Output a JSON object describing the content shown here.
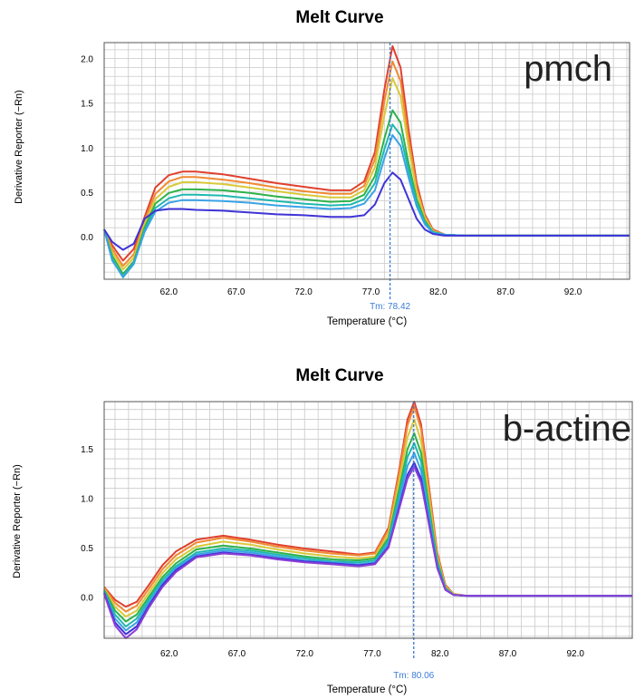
{
  "chart_data": [
    {
      "type": "line",
      "title": "Melt Curve",
      "annotation": "pmch",
      "xlabel": "Temperature (°C)",
      "ylabel": "Derivative Reporter (−Rn)",
      "xlim": [
        57.2,
        96.2
      ],
      "ylim": [
        -0.48,
        2.18
      ],
      "xticks": [
        62.0,
        67.0,
        72.0,
        77.0,
        82.0,
        87.0,
        92.0
      ],
      "yticks": [
        0.0,
        0.5,
        1.0,
        1.5,
        2.0
      ],
      "grid": true,
      "tm_label": "Tm: 78.42",
      "tm_value": 78.42,
      "x": [
        57.2,
        57.8,
        58.6,
        59.4,
        60.2,
        61.0,
        62.0,
        63.0,
        64.0,
        66.0,
        68.0,
        70.0,
        72.0,
        74.0,
        75.5,
        76.5,
        77.3,
        78.0,
        78.6,
        79.2,
        79.8,
        80.4,
        81.0,
        81.6,
        82.5,
        84.0,
        87.0,
        90.0,
        96.2
      ],
      "series": [
        {
          "color": "#e0402f",
          "values": [
            0.08,
            -0.1,
            -0.27,
            -0.14,
            0.22,
            0.55,
            0.69,
            0.73,
            0.73,
            0.7,
            0.65,
            0.6,
            0.56,
            0.52,
            0.52,
            0.62,
            0.95,
            1.65,
            2.14,
            1.9,
            1.2,
            0.6,
            0.25,
            0.08,
            0.02,
            0.01,
            0.01,
            0.01,
            0.01
          ]
        },
        {
          "color": "#f08a32",
          "values": [
            0.08,
            -0.14,
            -0.33,
            -0.2,
            0.18,
            0.48,
            0.62,
            0.67,
            0.67,
            0.64,
            0.6,
            0.55,
            0.51,
            0.48,
            0.48,
            0.57,
            0.87,
            1.52,
            1.97,
            1.75,
            1.1,
            0.55,
            0.23,
            0.07,
            0.02,
            0.01,
            0.01,
            0.01,
            0.01
          ]
        },
        {
          "color": "#d9c93a",
          "values": [
            0.08,
            -0.18,
            -0.37,
            -0.24,
            0.14,
            0.42,
            0.56,
            0.61,
            0.61,
            0.59,
            0.55,
            0.51,
            0.47,
            0.44,
            0.44,
            0.52,
            0.78,
            1.36,
            1.78,
            1.58,
            1.0,
            0.5,
            0.21,
            0.06,
            0.02,
            0.01,
            0.01,
            0.01,
            0.01
          ]
        },
        {
          "color": "#2fb24a",
          "values": [
            0.08,
            -0.22,
            -0.42,
            -0.28,
            0.1,
            0.37,
            0.49,
            0.53,
            0.53,
            0.52,
            0.49,
            0.45,
            0.42,
            0.39,
            0.4,
            0.47,
            0.68,
            1.1,
            1.42,
            1.28,
            0.82,
            0.42,
            0.18,
            0.05,
            0.02,
            0.01,
            0.01,
            0.01,
            0.01
          ]
        },
        {
          "color": "#1fb8b0",
          "values": [
            0.08,
            -0.26,
            -0.46,
            -0.31,
            0.07,
            0.32,
            0.43,
            0.47,
            0.47,
            0.46,
            0.43,
            0.4,
            0.37,
            0.35,
            0.36,
            0.42,
            0.6,
            0.98,
            1.26,
            1.14,
            0.74,
            0.38,
            0.16,
            0.05,
            0.02,
            0.01,
            0.01,
            0.01,
            0.01
          ]
        },
        {
          "color": "#39a3e6",
          "values": [
            0.08,
            -0.27,
            -0.45,
            -0.3,
            0.05,
            0.28,
            0.38,
            0.41,
            0.41,
            0.4,
            0.38,
            0.35,
            0.33,
            0.31,
            0.32,
            0.37,
            0.52,
            0.88,
            1.14,
            1.02,
            0.66,
            0.34,
            0.14,
            0.04,
            0.02,
            0.01,
            0.01,
            0.01,
            0.01
          ]
        },
        {
          "color": "#3f33d6",
          "values": [
            0.08,
            -0.06,
            -0.15,
            -0.08,
            0.2,
            0.29,
            0.31,
            0.31,
            0.3,
            0.29,
            0.27,
            0.25,
            0.24,
            0.22,
            0.22,
            0.24,
            0.36,
            0.6,
            0.72,
            0.64,
            0.42,
            0.2,
            0.08,
            0.03,
            0.01,
            0.01,
            0.01,
            0.01,
            0.01
          ]
        }
      ]
    },
    {
      "type": "line",
      "title": "Melt Curve",
      "annotation": "b-actine",
      "xlabel": "Temperature (°C)",
      "ylabel": "Derivative Reporter (−Rn)",
      "xlim": [
        57.2,
        96.2
      ],
      "ylim": [
        -0.42,
        1.98
      ],
      "xticks": [
        62.0,
        67.0,
        72.0,
        77.0,
        82.0,
        87.0,
        92.0
      ],
      "yticks": [
        0.0,
        0.5,
        1.0,
        1.5
      ],
      "grid": true,
      "tm_label": "Tm: 80.06",
      "tm_value": 80.06,
      "x": [
        57.2,
        58.0,
        58.8,
        59.6,
        60.5,
        61.5,
        62.5,
        64.0,
        66.0,
        68.0,
        70.0,
        72.0,
        74.0,
        76.0,
        77.2,
        78.2,
        79.0,
        79.6,
        80.1,
        80.6,
        81.2,
        81.8,
        82.4,
        83.0,
        84.0,
        87.0,
        90.0,
        96.2
      ],
      "series": [
        {
          "color": "#e0402f",
          "values": [
            0.1,
            -0.03,
            -0.1,
            -0.05,
            0.12,
            0.32,
            0.46,
            0.58,
            0.62,
            0.58,
            0.53,
            0.49,
            0.46,
            0.43,
            0.45,
            0.7,
            1.3,
            1.8,
            1.98,
            1.75,
            1.1,
            0.45,
            0.12,
            0.03,
            0.01,
            0.01,
            0.01,
            0.01
          ]
        },
        {
          "color": "#f08a32",
          "values": [
            0.09,
            -0.06,
            -0.15,
            -0.09,
            0.08,
            0.28,
            0.42,
            0.55,
            0.6,
            0.56,
            0.51,
            0.47,
            0.44,
            0.42,
            0.44,
            0.68,
            1.26,
            1.74,
            1.93,
            1.7,
            1.06,
            0.43,
            0.11,
            0.03,
            0.01,
            0.01,
            0.01,
            0.01
          ]
        },
        {
          "color": "#d9c93a",
          "values": [
            0.08,
            -0.1,
            -0.2,
            -0.14,
            0.04,
            0.24,
            0.38,
            0.51,
            0.56,
            0.53,
            0.48,
            0.44,
            0.41,
            0.39,
            0.41,
            0.64,
            1.18,
            1.62,
            1.8,
            1.58,
            0.98,
            0.4,
            0.1,
            0.03,
            0.01,
            0.01,
            0.01,
            0.01
          ]
        },
        {
          "color": "#2fb24a",
          "values": [
            0.07,
            -0.14,
            -0.25,
            -0.18,
            0.0,
            0.2,
            0.34,
            0.48,
            0.52,
            0.49,
            0.45,
            0.41,
            0.38,
            0.37,
            0.39,
            0.6,
            1.1,
            1.5,
            1.66,
            1.46,
            0.9,
            0.37,
            0.09,
            0.02,
            0.01,
            0.01,
            0.01,
            0.01
          ]
        },
        {
          "color": "#1fb8b0",
          "values": [
            0.06,
            -0.18,
            -0.3,
            -0.22,
            -0.03,
            0.17,
            0.31,
            0.45,
            0.49,
            0.47,
            0.43,
            0.39,
            0.36,
            0.35,
            0.37,
            0.57,
            1.04,
            1.42,
            1.56,
            1.37,
            0.85,
            0.34,
            0.08,
            0.02,
            0.01,
            0.01,
            0.01,
            0.01
          ]
        },
        {
          "color": "#39a3e6",
          "values": [
            0.05,
            -0.22,
            -0.34,
            -0.26,
            -0.06,
            0.14,
            0.29,
            0.43,
            0.47,
            0.45,
            0.41,
            0.37,
            0.35,
            0.33,
            0.35,
            0.54,
            0.98,
            1.33,
            1.46,
            1.28,
            0.79,
            0.32,
            0.08,
            0.02,
            0.01,
            0.01,
            0.01,
            0.01
          ]
        },
        {
          "color": "#3f33d6",
          "values": [
            0.04,
            -0.26,
            -0.38,
            -0.3,
            -0.09,
            0.12,
            0.27,
            0.41,
            0.45,
            0.43,
            0.39,
            0.36,
            0.34,
            0.32,
            0.34,
            0.51,
            0.92,
            1.24,
            1.36,
            1.2,
            0.74,
            0.3,
            0.07,
            0.02,
            0.01,
            0.01,
            0.01,
            0.01
          ]
        },
        {
          "color": "#8a3fd6",
          "values": [
            0.03,
            -0.29,
            -0.42,
            -0.33,
            -0.11,
            0.1,
            0.25,
            0.4,
            0.44,
            0.42,
            0.38,
            0.35,
            0.33,
            0.31,
            0.33,
            0.5,
            0.9,
            1.2,
            1.32,
            1.16,
            0.72,
            0.29,
            0.07,
            0.02,
            0.01,
            0.01,
            0.01,
            0.01
          ]
        }
      ]
    }
  ]
}
